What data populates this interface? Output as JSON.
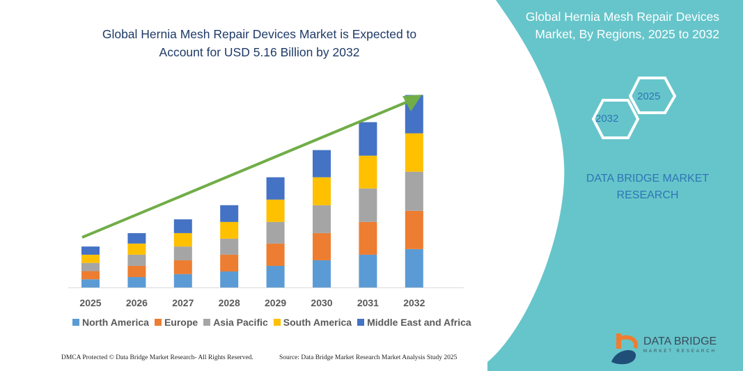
{
  "chart_data": {
    "type": "bar",
    "stacked": true,
    "title": "Global Hernia Mesh Repair Devices Market is Expected to Account for USD 5.16 Billion by 2032",
    "categories": [
      "2025",
      "2026",
      "2027",
      "2028",
      "2029",
      "2030",
      "2031",
      "2032"
    ],
    "series": [
      {
        "name": "North America",
        "color": "#5b9bd5",
        "values": [
          0.22,
          0.28,
          0.36,
          0.43,
          0.58,
          0.73,
          0.88,
          1.03
        ]
      },
      {
        "name": "Europe",
        "color": "#ed7d31",
        "values": [
          0.22,
          0.3,
          0.37,
          0.45,
          0.6,
          0.73,
          0.88,
          1.03
        ]
      },
      {
        "name": "Asia Pacific",
        "color": "#a5a5a5",
        "values": [
          0.22,
          0.3,
          0.37,
          0.43,
          0.58,
          0.75,
          0.9,
          1.05
        ]
      },
      {
        "name": "South America",
        "color": "#ffc000",
        "values": [
          0.22,
          0.3,
          0.36,
          0.45,
          0.6,
          0.75,
          0.88,
          1.03
        ]
      },
      {
        "name": "Middle East and Africa",
        "color": "#4472c4",
        "values": [
          0.22,
          0.28,
          0.37,
          0.45,
          0.6,
          0.73,
          0.9,
          1.03
        ]
      }
    ],
    "ylim": [
      0,
      5.3
    ],
    "grid": false,
    "legend": "bottom",
    "trend_arrow_color": "#70ad47"
  },
  "title_line1": "Global Hernia Mesh Repair Devices Market is Expected to",
  "title_line2": "Account for USD 5.16 Billion by 2032",
  "side_panel": {
    "title_line1": "Global Hernia Mesh Repair Devices",
    "title_line2": "Market, By Regions, 2025 to 2032",
    "hex_2025": "2025",
    "hex_2032": "2032",
    "brand_line1": "DATA BRIDGE MARKET",
    "brand_line2": "RESEARCH",
    "logo_text": "DATA BRIDGE",
    "logo_sub": "MARKET RESEARCH",
    "color": "#66c5ca"
  },
  "footer": {
    "left": "DMCA Protected © Data Bridge Market Research-  All Rights Reserved.",
    "right": "Source: Data Bridge Market Research  Market Analysis Study 2025"
  }
}
